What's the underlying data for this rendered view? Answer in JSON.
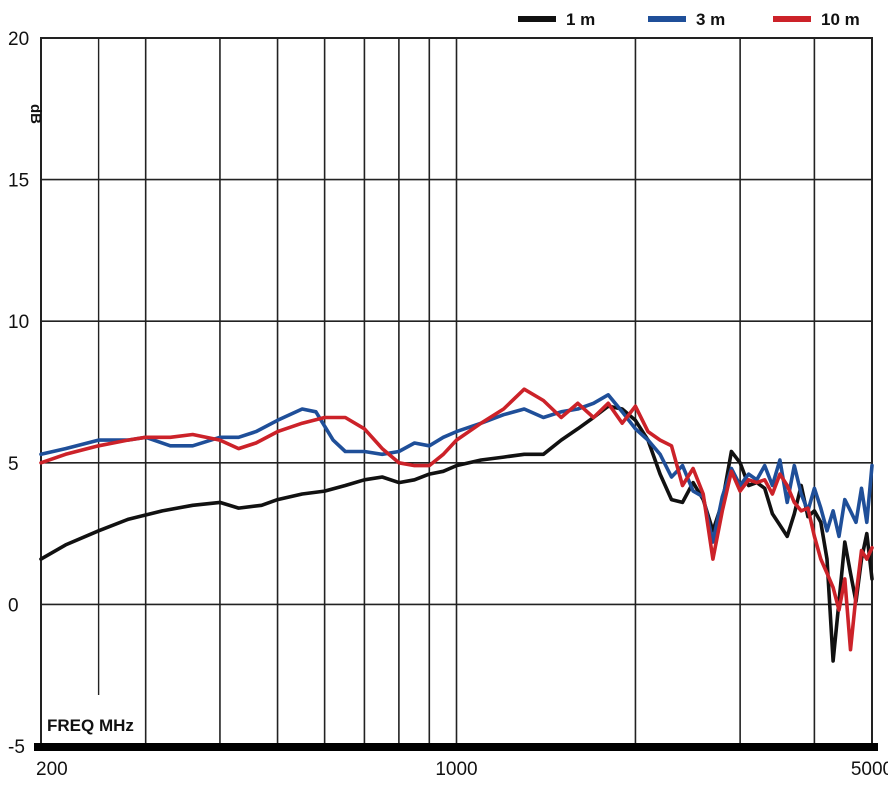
{
  "chart_data": {
    "type": "line",
    "xlabel": "FREQ MHz",
    "ylabel": "dB",
    "xscale": "log",
    "xlim": [
      200,
      5000
    ],
    "ylim": [
      -5,
      20
    ],
    "x_ticks": [
      {
        "value": 200,
        "label": "200"
      },
      {
        "value": 1000,
        "label": "1000"
      },
      {
        "value": 5000,
        "label": "5000"
      }
    ],
    "x_gridlines": [
      300,
      400,
      500,
      600,
      700,
      800,
      900,
      1000,
      2000,
      3000,
      4000,
      5000
    ],
    "y_ticks": [
      -5,
      0,
      5,
      10,
      15,
      20
    ],
    "grid": true,
    "legend_position": "top-right",
    "series": [
      {
        "name": "1 m",
        "color": "#111111",
        "points": [
          [
            200,
            1.6
          ],
          [
            220,
            2.1
          ],
          [
            250,
            2.6
          ],
          [
            280,
            3.0
          ],
          [
            320,
            3.3
          ],
          [
            360,
            3.5
          ],
          [
            400,
            3.6
          ],
          [
            430,
            3.4
          ],
          [
            470,
            3.5
          ],
          [
            500,
            3.7
          ],
          [
            550,
            3.9
          ],
          [
            600,
            4.0
          ],
          [
            650,
            4.2
          ],
          [
            700,
            4.4
          ],
          [
            750,
            4.5
          ],
          [
            800,
            4.3
          ],
          [
            850,
            4.4
          ],
          [
            900,
            4.6
          ],
          [
            950,
            4.7
          ],
          [
            1000,
            4.9
          ],
          [
            1100,
            5.1
          ],
          [
            1200,
            5.2
          ],
          [
            1300,
            5.3
          ],
          [
            1400,
            5.3
          ],
          [
            1500,
            5.8
          ],
          [
            1600,
            6.2
          ],
          [
            1700,
            6.6
          ],
          [
            1800,
            7.0
          ],
          [
            1900,
            6.9
          ],
          [
            2000,
            6.5
          ],
          [
            2100,
            5.8
          ],
          [
            2200,
            4.6
          ],
          [
            2300,
            3.7
          ],
          [
            2400,
            3.6
          ],
          [
            2500,
            4.3
          ],
          [
            2600,
            3.7
          ],
          [
            2700,
            2.6
          ],
          [
            2800,
            3.6
          ],
          [
            2900,
            5.4
          ],
          [
            3000,
            5.0
          ],
          [
            3100,
            4.2
          ],
          [
            3200,
            4.3
          ],
          [
            3300,
            4.1
          ],
          [
            3400,
            3.2
          ],
          [
            3500,
            2.8
          ],
          [
            3600,
            2.4
          ],
          [
            3700,
            3.2
          ],
          [
            3800,
            4.2
          ],
          [
            3900,
            3.1
          ],
          [
            4000,
            3.3
          ],
          [
            4100,
            2.9
          ],
          [
            4200,
            1.6
          ],
          [
            4300,
            -2.0
          ],
          [
            4400,
            0.1
          ],
          [
            4500,
            2.2
          ],
          [
            4600,
            1.1
          ],
          [
            4700,
            0.1
          ],
          [
            4800,
            1.6
          ],
          [
            4900,
            2.5
          ],
          [
            5000,
            0.9
          ]
        ]
      },
      {
        "name": "3 m",
        "color": "#1f4f99",
        "points": [
          [
            200,
            5.3
          ],
          [
            220,
            5.5
          ],
          [
            250,
            5.8
          ],
          [
            280,
            5.8
          ],
          [
            300,
            5.9
          ],
          [
            330,
            5.6
          ],
          [
            360,
            5.6
          ],
          [
            400,
            5.9
          ],
          [
            430,
            5.9
          ],
          [
            460,
            6.1
          ],
          [
            500,
            6.5
          ],
          [
            550,
            6.9
          ],
          [
            580,
            6.8
          ],
          [
            620,
            5.8
          ],
          [
            650,
            5.4
          ],
          [
            700,
            5.4
          ],
          [
            750,
            5.3
          ],
          [
            800,
            5.4
          ],
          [
            850,
            5.7
          ],
          [
            900,
            5.6
          ],
          [
            950,
            5.9
          ],
          [
            1000,
            6.1
          ],
          [
            1100,
            6.4
          ],
          [
            1200,
            6.7
          ],
          [
            1300,
            6.9
          ],
          [
            1400,
            6.6
          ],
          [
            1500,
            6.8
          ],
          [
            1600,
            6.9
          ],
          [
            1700,
            7.1
          ],
          [
            1800,
            7.4
          ],
          [
            1900,
            6.8
          ],
          [
            2000,
            6.2
          ],
          [
            2100,
            5.8
          ],
          [
            2200,
            5.3
          ],
          [
            2300,
            4.5
          ],
          [
            2400,
            4.9
          ],
          [
            2500,
            4.0
          ],
          [
            2600,
            3.8
          ],
          [
            2700,
            2.2
          ],
          [
            2800,
            3.8
          ],
          [
            2900,
            4.8
          ],
          [
            3000,
            4.2
          ],
          [
            3100,
            4.6
          ],
          [
            3200,
            4.4
          ],
          [
            3300,
            4.9
          ],
          [
            3400,
            4.2
          ],
          [
            3500,
            5.1
          ],
          [
            3600,
            3.6
          ],
          [
            3700,
            4.9
          ],
          [
            3800,
            3.9
          ],
          [
            3900,
            3.3
          ],
          [
            4000,
            4.1
          ],
          [
            4100,
            3.4
          ],
          [
            4200,
            2.6
          ],
          [
            4300,
            3.3
          ],
          [
            4400,
            2.4
          ],
          [
            4500,
            3.7
          ],
          [
            4600,
            3.3
          ],
          [
            4700,
            2.9
          ],
          [
            4800,
            4.1
          ],
          [
            4900,
            2.9
          ],
          [
            5000,
            4.9
          ]
        ]
      },
      {
        "name": "10 m",
        "color": "#cc2229",
        "points": [
          [
            200,
            5.0
          ],
          [
            220,
            5.3
          ],
          [
            250,
            5.6
          ],
          [
            280,
            5.8
          ],
          [
            300,
            5.9
          ],
          [
            330,
            5.9
          ],
          [
            360,
            6.0
          ],
          [
            400,
            5.8
          ],
          [
            430,
            5.5
          ],
          [
            460,
            5.7
          ],
          [
            500,
            6.1
          ],
          [
            550,
            6.4
          ],
          [
            600,
            6.6
          ],
          [
            650,
            6.6
          ],
          [
            700,
            6.2
          ],
          [
            750,
            5.5
          ],
          [
            800,
            5.0
          ],
          [
            850,
            4.9
          ],
          [
            900,
            4.9
          ],
          [
            950,
            5.3
          ],
          [
            1000,
            5.8
          ],
          [
            1100,
            6.4
          ],
          [
            1200,
            6.9
          ],
          [
            1300,
            7.6
          ],
          [
            1400,
            7.2
          ],
          [
            1500,
            6.6
          ],
          [
            1600,
            7.1
          ],
          [
            1700,
            6.6
          ],
          [
            1800,
            7.1
          ],
          [
            1900,
            6.4
          ],
          [
            2000,
            7.0
          ],
          [
            2100,
            6.1
          ],
          [
            2200,
            5.8
          ],
          [
            2300,
            5.6
          ],
          [
            2400,
            4.2
          ],
          [
            2500,
            4.8
          ],
          [
            2600,
            3.9
          ],
          [
            2700,
            1.6
          ],
          [
            2800,
            3.3
          ],
          [
            2900,
            4.7
          ],
          [
            3000,
            4.0
          ],
          [
            3100,
            4.4
          ],
          [
            3200,
            4.3
          ],
          [
            3300,
            4.4
          ],
          [
            3400,
            3.9
          ],
          [
            3500,
            4.6
          ],
          [
            3600,
            4.2
          ],
          [
            3700,
            3.6
          ],
          [
            3800,
            3.3
          ],
          [
            3900,
            3.4
          ],
          [
            4000,
            2.4
          ],
          [
            4100,
            1.6
          ],
          [
            4200,
            1.1
          ],
          [
            4300,
            0.6
          ],
          [
            4400,
            -0.2
          ],
          [
            4500,
            0.9
          ],
          [
            4600,
            -1.6
          ],
          [
            4700,
            0.3
          ],
          [
            4800,
            1.9
          ],
          [
            4900,
            1.6
          ],
          [
            5000,
            2.0
          ]
        ]
      }
    ]
  }
}
